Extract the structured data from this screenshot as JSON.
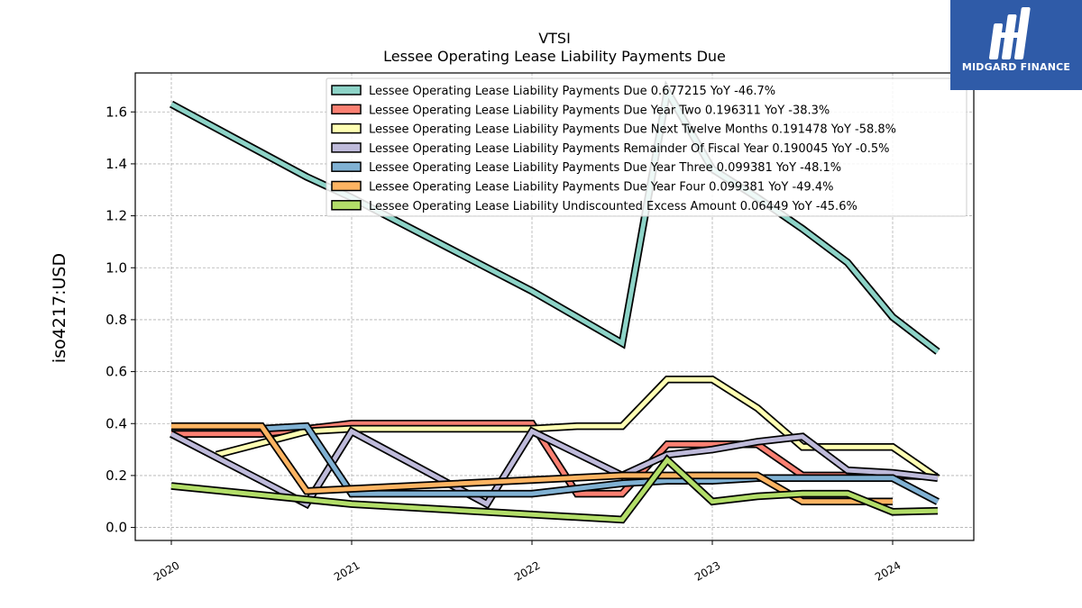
{
  "brand": {
    "name": "MIDGARD FINANCE",
    "bg_color": "#2f5ba8"
  },
  "chart_data": {
    "type": "line",
    "title": "VTSI",
    "subtitle": "Lessee Operating Lease Liability Payments Due",
    "xlabel": "",
    "ylabel": "iso4217:USD",
    "xlim": [
      2019.8,
      2024.45
    ],
    "ylim": [
      -0.05,
      1.75
    ],
    "xticks": [
      2020,
      2021,
      2022,
      2023,
      2024
    ],
    "xtick_labels": [
      "2020",
      "2021",
      "2022",
      "2023",
      "2024"
    ],
    "yticks": [
      0.0,
      0.2,
      0.4,
      0.6,
      0.8,
      1.0,
      1.2,
      1.4,
      1.6
    ],
    "ytick_labels": [
      "0.0",
      "0.2",
      "0.4",
      "0.6",
      "0.8",
      "1.0",
      "1.2",
      "1.4",
      "1.6"
    ],
    "grid": true,
    "legend_position": "top-right",
    "series": [
      {
        "name": "Lessee Operating Lease Liability Payments Due",
        "legend": "Lessee Operating Lease Liability Payments Due  0.677215 YoY -46.7%",
        "color": "#8dd3c7",
        "x": [
          2020.0,
          2020.75,
          2021.0,
          2022.0,
          2022.5,
          2022.75,
          2023.0,
          2023.25,
          2023.5,
          2023.75,
          2024.0,
          2024.25
        ],
        "y": [
          1.63,
          1.35,
          1.27,
          0.91,
          0.71,
          1.68,
          1.38,
          1.27,
          1.15,
          1.02,
          0.81,
          0.677
        ]
      },
      {
        "name": "Lessee Operating Lease Liability Payments Due Year Two",
        "legend": "Lessee Operating Lease Liability Payments Due Year Two  0.196311 YoY -38.3%",
        "color": "#fb8072",
        "x": [
          2020.0,
          2020.5,
          2021.0,
          2022.0,
          2022.25,
          2022.5,
          2022.75,
          2023.0,
          2023.25,
          2023.5,
          2023.75,
          2024.0,
          2024.25
        ],
        "y": [
          0.36,
          0.36,
          0.4,
          0.4,
          0.13,
          0.13,
          0.32,
          0.32,
          0.32,
          0.2,
          0.2,
          0.2,
          0.196
        ]
      },
      {
        "name": "Lessee Operating Lease Liability Payments Due Next Twelve Months",
        "legend": "Lessee Operating Lease Liability Payments Due Next Twelve Months  0.191478 YoY -58.8%",
        "color": "#ffffb3",
        "x": [
          2020.25,
          2020.75,
          2021.0,
          2022.0,
          2022.25,
          2022.5,
          2022.75,
          2023.0,
          2023.25,
          2023.5,
          2023.75,
          2024.0,
          2024.25
        ],
        "y": [
          0.28,
          0.37,
          0.38,
          0.38,
          0.39,
          0.39,
          0.57,
          0.57,
          0.46,
          0.31,
          0.31,
          0.31,
          0.19
        ]
      },
      {
        "name": "Lessee Operating Lease Liability Payments Remainder Of Fiscal Year",
        "legend": "Lessee Operating Lease Liability Payments Remainder Of Fiscal Year  0.190045 YoY -0.5%",
        "color": "#bebada",
        "x": [
          2020.0,
          2020.75,
          2021.0,
          2021.75,
          2022.0,
          2022.5,
          2022.75,
          2023.0,
          2023.25,
          2023.5,
          2023.75,
          2024.0,
          2024.25
        ],
        "y": [
          0.36,
          0.09,
          0.37,
          0.09,
          0.37,
          0.2,
          0.28,
          0.3,
          0.33,
          0.35,
          0.22,
          0.21,
          0.19
        ]
      },
      {
        "name": "Lessee Operating Lease Liability Payments Due Year Three",
        "legend": "Lessee Operating Lease Liability Payments Due Year Three  0.099381 YoY -48.1%",
        "color": "#80b1d3",
        "x": [
          2020.5,
          2020.75,
          2021.0,
          2022.0,
          2022.5,
          2022.75,
          2023.0,
          2023.25,
          2023.5,
          2023.75,
          2024.0,
          2024.25
        ],
        "y": [
          0.38,
          0.39,
          0.13,
          0.13,
          0.17,
          0.18,
          0.18,
          0.19,
          0.19,
          0.19,
          0.19,
          0.099
        ]
      },
      {
        "name": "Lessee Operating Lease Liability Payments Due Year Four",
        "legend": "Lessee Operating Lease Liability Payments Due Year Four  0.099381 YoY -49.4%",
        "color": "#fdb462",
        "x": [
          2020.0,
          2020.5,
          2020.75,
          2022.5,
          2022.75,
          2023.0,
          2023.25,
          2023.5,
          2023.75,
          2024.0
        ],
        "y": [
          0.39,
          0.39,
          0.14,
          0.2,
          0.2,
          0.2,
          0.2,
          0.1,
          0.1,
          0.1
        ]
      },
      {
        "name": "Lessee Operating Lease Liability Undiscounted Excess Amount",
        "legend": "Lessee Operating Lease Liability Undiscounted Excess Amount  0.06449 YoY -45.6%",
        "color": "#b3de69",
        "x": [
          2020.0,
          2021.0,
          2022.0,
          2022.5,
          2022.75,
          2023.0,
          2023.25,
          2023.5,
          2023.75,
          2024.0,
          2024.25
        ],
        "y": [
          0.16,
          0.09,
          0.05,
          0.03,
          0.26,
          0.1,
          0.12,
          0.13,
          0.13,
          0.06,
          0.064
        ]
      }
    ]
  }
}
